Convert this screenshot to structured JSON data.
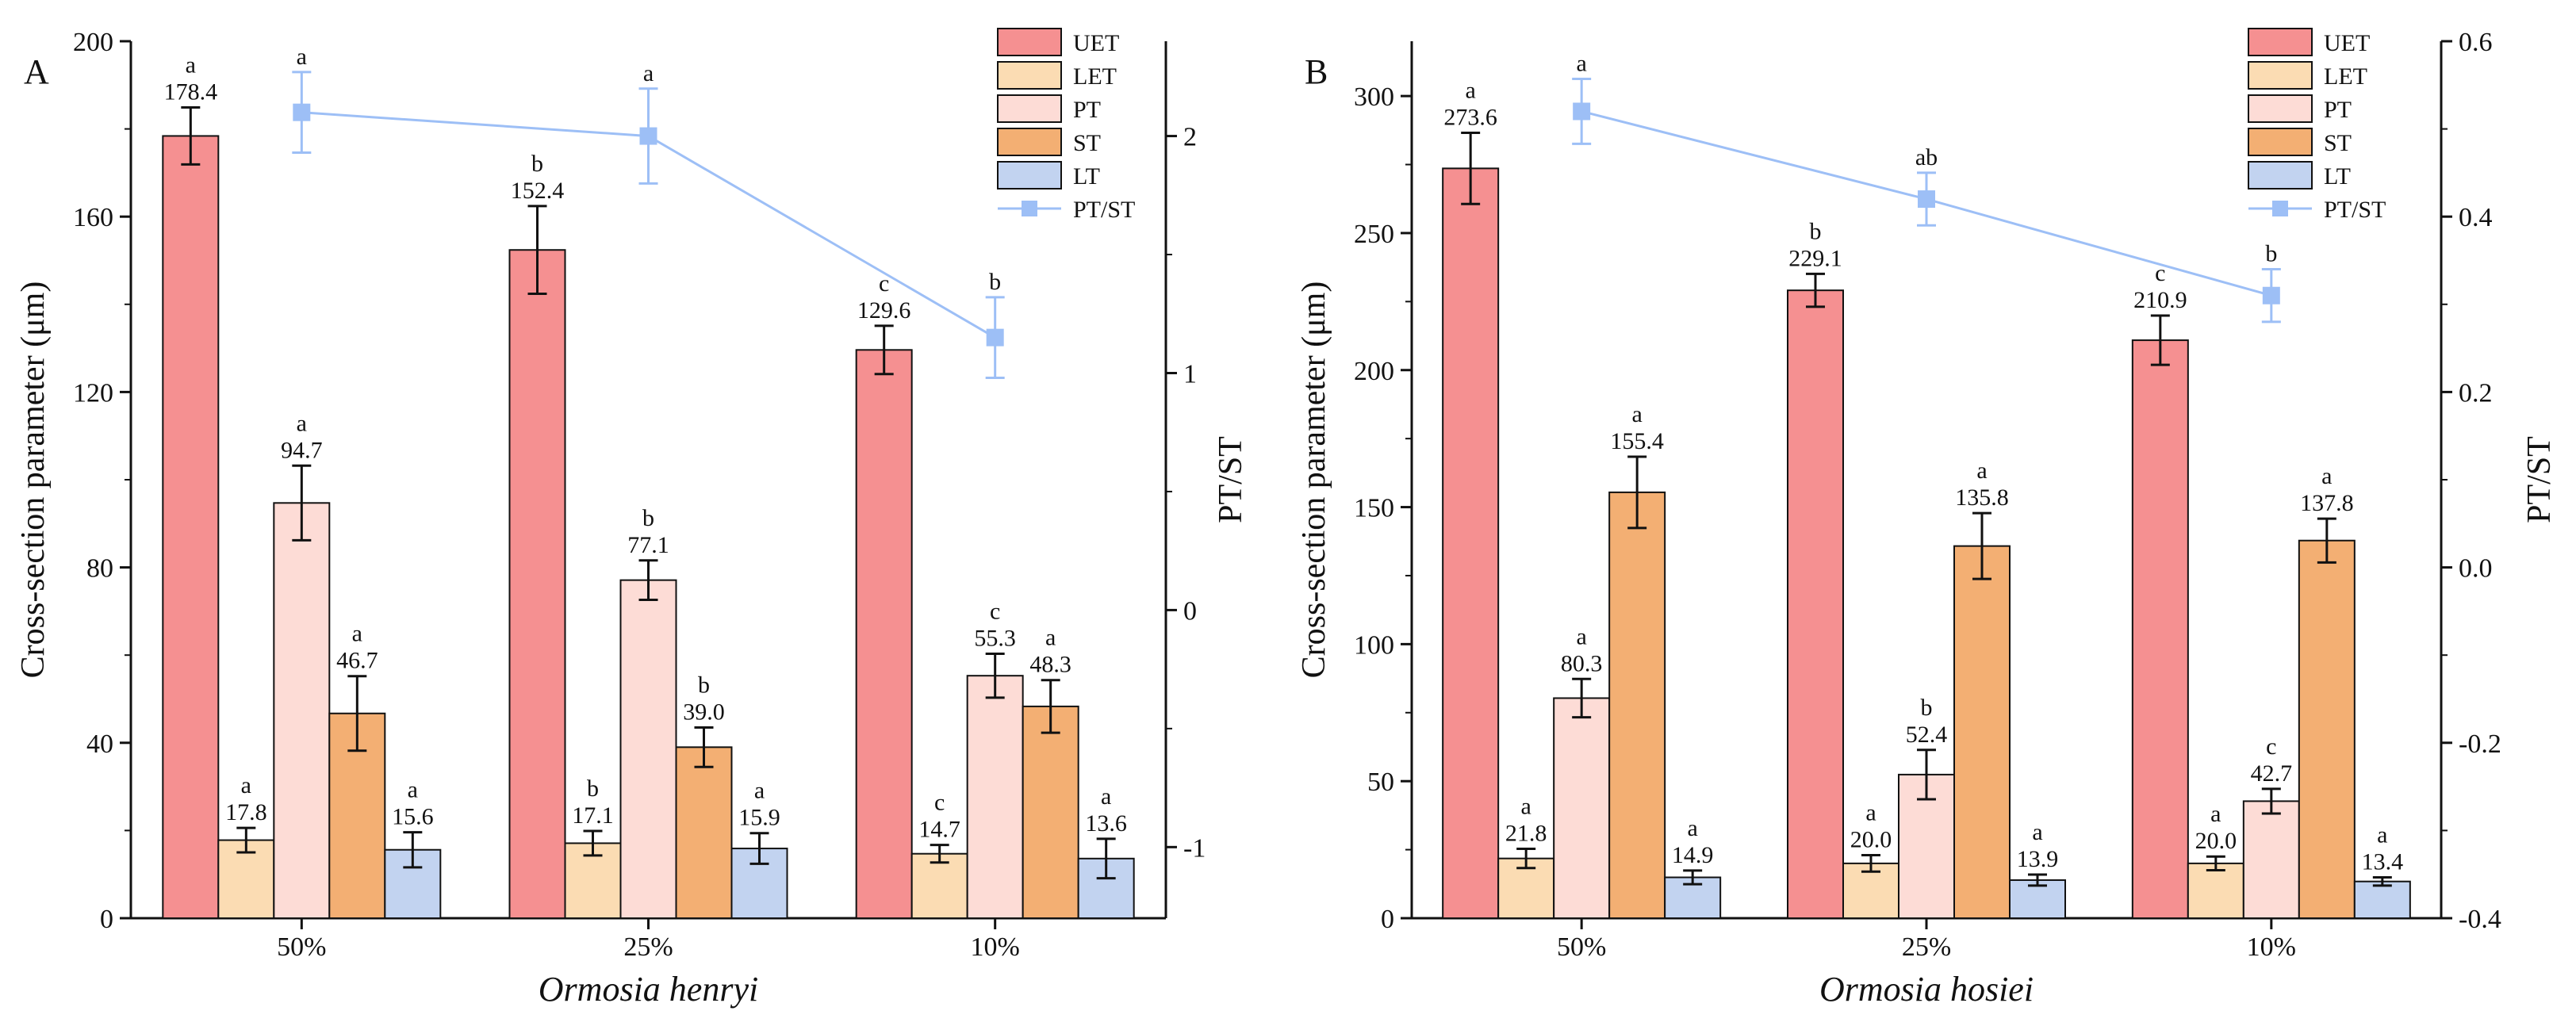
{
  "colors": {
    "UET": "#f59091",
    "LET": "#fbdcb3",
    "PT": "#fddcd6",
    "ST": "#f3af73",
    "LT": "#c2d3f0",
    "PT/ST": "#9dbff6",
    "error_bar": "#111111"
  },
  "chart_data": [
    {
      "type": "bar",
      "panel": "A",
      "title": "",
      "xlabel": "Ormosia henryi",
      "ylabel": "Cross-section parameter (μm)",
      "y2label": "PT/ST",
      "categories": [
        "50%",
        "25%",
        "10%"
      ],
      "ylim": [
        0,
        200
      ],
      "yticks": [
        "0",
        "40",
        "80",
        "120",
        "160",
        "200"
      ],
      "y2lim": [
        -1.3,
        2.4
      ],
      "y2ticks": [
        "-1",
        "0",
        "1",
        "2"
      ],
      "legend_position": "top-right",
      "legend": [
        "UET",
        "LET",
        "PT",
        "ST",
        "LT",
        "PT/ST"
      ],
      "series": [
        {
          "name": "UET",
          "values": [
            178.4,
            152.4,
            129.6
          ],
          "labels": [
            "178.4",
            "152.4",
            "129.6"
          ],
          "errors": [
            6.5,
            10.0,
            5.5
          ],
          "sig": [
            "a",
            "b",
            "c"
          ]
        },
        {
          "name": "LET",
          "values": [
            17.8,
            17.1,
            14.7
          ],
          "labels": [
            "17.8",
            "17.1",
            "14.7"
          ],
          "errors": [
            2.8,
            2.8,
            2.0
          ],
          "sig": [
            "a",
            "b",
            "c"
          ]
        },
        {
          "name": "PT",
          "values": [
            94.7,
            77.1,
            55.3
          ],
          "labels": [
            "94.7",
            "77.1",
            "55.3"
          ],
          "errors": [
            8.5,
            4.5,
            5.0
          ],
          "sig": [
            "a",
            "b",
            "c"
          ]
        },
        {
          "name": "ST",
          "values": [
            46.7,
            39.0,
            48.3
          ],
          "labels": [
            "46.7",
            "39.0",
            "48.3"
          ],
          "errors": [
            8.5,
            4.5,
            6.0
          ],
          "sig": [
            "a",
            "b",
            "a"
          ]
        },
        {
          "name": "LT",
          "values": [
            15.6,
            15.9,
            13.6
          ],
          "labels": [
            "15.6",
            "15.9",
            "13.6"
          ],
          "errors": [
            4.0,
            3.5,
            4.5
          ],
          "sig": [
            "a",
            "a",
            "a"
          ]
        }
      ],
      "line": {
        "name": "PT/ST",
        "values": [
          2.1,
          2.0,
          1.15
        ],
        "errors": [
          0.17,
          0.2,
          0.17
        ],
        "sig": [
          "a",
          "a",
          "b"
        ]
      }
    },
    {
      "type": "bar",
      "panel": "B",
      "title": "",
      "xlabel": "Ormosia hosiei",
      "ylabel": "Cross-section parameter (μm)",
      "y2label": "PT/ST",
      "categories": [
        "50%",
        "25%",
        "10%"
      ],
      "ylim": [
        0,
        320
      ],
      "yticks": [
        "0",
        "50",
        "100",
        "150",
        "200",
        "250",
        "300"
      ],
      "y2lim": [
        -0.4,
        0.6
      ],
      "y2ticks": [
        "-0.4",
        "-0.2",
        "0.0",
        "0.2",
        "0.4",
        "0.6"
      ],
      "legend_position": "top-right",
      "legend": [
        "UET",
        "LET",
        "PT",
        "ST",
        "LT",
        "PT/ST"
      ],
      "series": [
        {
          "name": "UET",
          "values": [
            273.6,
            229.1,
            210.9
          ],
          "labels": [
            "273.6",
            "229.1",
            "210.9"
          ],
          "errors": [
            13.0,
            6.0,
            9.0
          ],
          "sig": [
            "a",
            "b",
            "c"
          ]
        },
        {
          "name": "LET",
          "values": [
            21.8,
            20.0,
            20.0
          ],
          "labels": [
            "21.8",
            "20.0",
            "20.0"
          ],
          "errors": [
            3.5,
            3.0,
            2.5
          ],
          "sig": [
            "a",
            "a",
            "a"
          ]
        },
        {
          "name": "PT",
          "values": [
            80.3,
            52.4,
            42.7
          ],
          "labels": [
            "80.3",
            "52.4",
            "42.7"
          ],
          "errors": [
            7.0,
            9.0,
            4.5
          ],
          "sig": [
            "a",
            "b",
            "c"
          ]
        },
        {
          "name": "ST",
          "values": [
            155.4,
            135.8,
            137.8
          ],
          "labels": [
            "155.4",
            "135.8",
            "137.8"
          ],
          "errors": [
            13.0,
            12.0,
            8.0
          ],
          "sig": [
            "a",
            "a",
            "a"
          ]
        },
        {
          "name": "LT",
          "values": [
            14.9,
            13.9,
            13.4
          ],
          "labels": [
            "14.9",
            "13.9",
            "13.4"
          ],
          "errors": [
            2.5,
            2.0,
            1.5
          ],
          "sig": [
            "a",
            "a",
            "a"
          ]
        }
      ],
      "line": {
        "name": "PT/ST",
        "values": [
          0.52,
          0.42,
          0.31
        ],
        "errors": [
          0.037,
          0.03,
          0.03
        ],
        "sig": [
          "a",
          "ab",
          "b"
        ]
      }
    }
  ]
}
